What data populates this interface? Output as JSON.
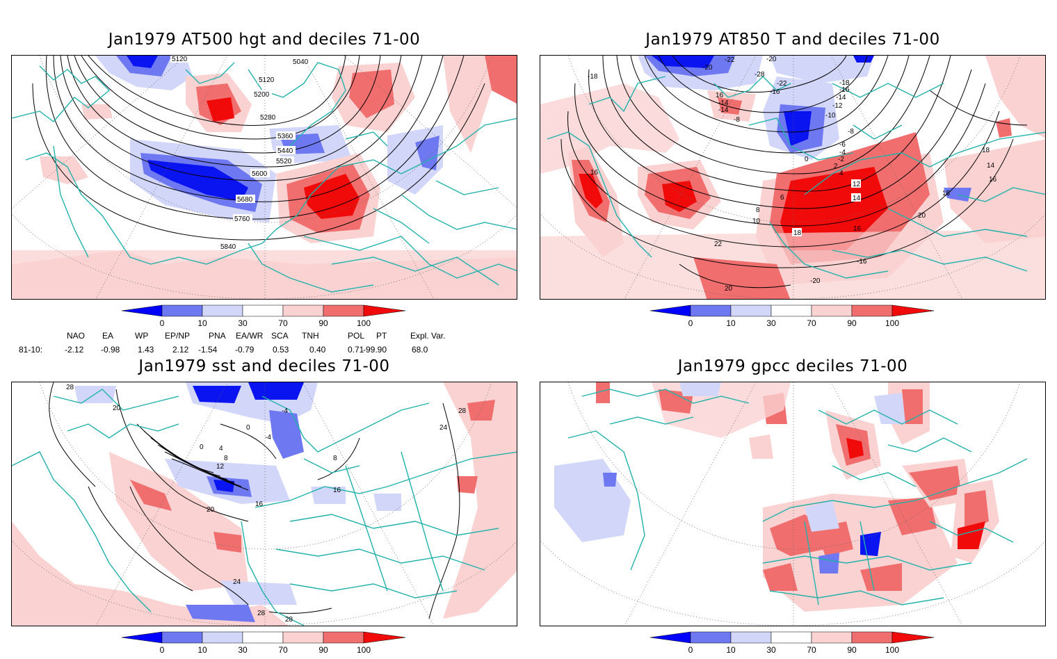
{
  "colorbar": {
    "ticks": [
      "0",
      "10",
      "30",
      "70",
      "90",
      "100"
    ],
    "colors": {
      "below_0": "#0000ff",
      "0_10": "#0a14f0",
      "10_30": "#6e78f0",
      "30_70_low": "#d2d7fa",
      "70_90": "#fad2d2",
      "90_100": "#f06e6e",
      "above_100": "#f00a0a"
    }
  },
  "indices": {
    "row_label": "81-10:",
    "names": [
      "NAO",
      "EA",
      "WP",
      "EP/NP",
      "PNA",
      "EA/WR",
      "SCA",
      "TNH",
      "POL",
      "PT",
      "Expl. Var."
    ],
    "values": [
      "-2.12",
      "-0.98",
      "1.43",
      "2.12",
      "-1.54",
      "-0.79",
      "0.53",
      "0.40",
      "0.71",
      "-99.90",
      "68.0"
    ]
  },
  "panels": [
    {
      "title": "Jan1979 AT500 hgt and deciles 71-00",
      "contour_labels": [
        "5120",
        "5040",
        "5120",
        "5200",
        "5280",
        "5360",
        "5440",
        "5520",
        "5600",
        "5680",
        "5760",
        "5840"
      ]
    },
    {
      "title": "Jan1979 AT850 T and deciles 71-00",
      "contour_labels": [
        "-20",
        "-22",
        "-20",
        "-28",
        "-18",
        "-16",
        "-14",
        "-12",
        "-10",
        "-8",
        "-8",
        "-6",
        "-4",
        "-2",
        "0",
        "2",
        "4",
        "6",
        "8",
        "10",
        "12",
        "14",
        "16",
        "18",
        "20",
        "22",
        "-16",
        "-20",
        "-18",
        "16",
        "16",
        "18",
        "14",
        "16",
        "18",
        "20",
        "16",
        "-14",
        "-14",
        "-16",
        "-22"
      ]
    },
    {
      "title": "Jan1979 sst and deciles 71-00",
      "contour_labels": [
        "28",
        "20",
        "0",
        "4",
        "8",
        "12",
        "16",
        "20",
        "24",
        "28",
        "28",
        "8",
        "16",
        "24",
        "28",
        "0",
        "-4",
        "-4"
      ]
    },
    {
      "title": "Jan1979 gpcc deciles 71-00",
      "contour_labels": []
    }
  ]
}
